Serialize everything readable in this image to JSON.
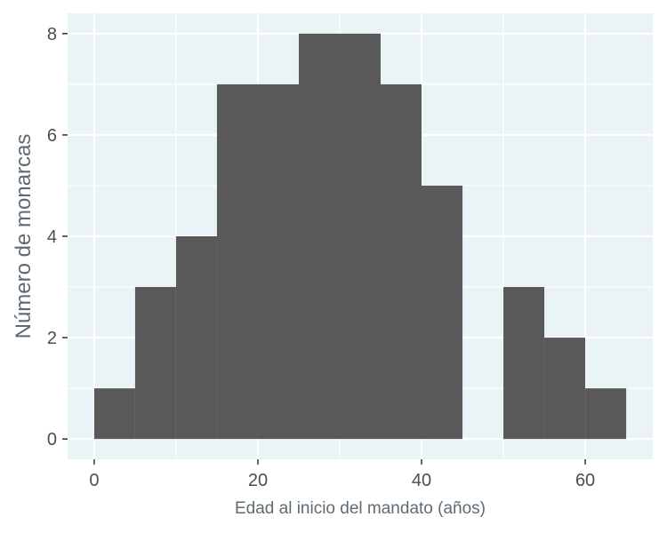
{
  "chart_data": {
    "type": "bar",
    "subtype": "histogram",
    "title": "",
    "xlabel": "Edad al inicio del mandato (años)",
    "ylabel": "Número de monarcas",
    "bin_width": 5,
    "bins": [
      {
        "start": 0,
        "end": 5,
        "count": 1
      },
      {
        "start": 5,
        "end": 10,
        "count": 3
      },
      {
        "start": 10,
        "end": 15,
        "count": 4
      },
      {
        "start": 15,
        "end": 20,
        "count": 7
      },
      {
        "start": 20,
        "end": 25,
        "count": 7
      },
      {
        "start": 25,
        "end": 30,
        "count": 8
      },
      {
        "start": 30,
        "end": 35,
        "count": 8
      },
      {
        "start": 35,
        "end": 40,
        "count": 7
      },
      {
        "start": 40,
        "end": 45,
        "count": 5
      },
      {
        "start": 45,
        "end": 50,
        "count": 0
      },
      {
        "start": 50,
        "end": 55,
        "count": 3
      },
      {
        "start": 55,
        "end": 60,
        "count": 2
      },
      {
        "start": 60,
        "end": 65,
        "count": 1
      }
    ],
    "xlim": [
      -3.25,
      68.25
    ],
    "ylim": [
      -0.4,
      8.4
    ],
    "x_ticks": [
      0,
      20,
      40,
      60
    ],
    "y_ticks": [
      0,
      2,
      4,
      6,
      8
    ],
    "grid": true,
    "colors": {
      "bar": "#595959",
      "panel_background": "#eaf3f6",
      "grid": "#ffffff",
      "tick_text": "#4d4d4d",
      "axis_title": "#5f6b73"
    }
  }
}
